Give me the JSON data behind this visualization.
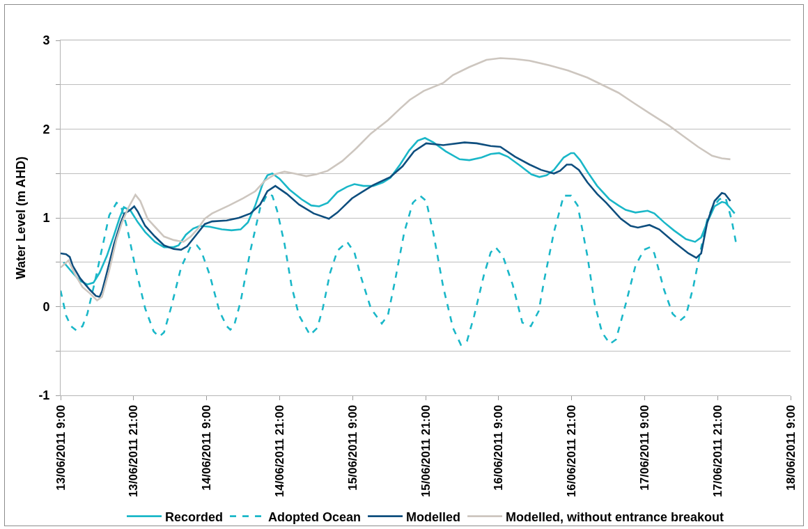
{
  "chart_data": {
    "type": "line",
    "ylabel": "Water Level (m AHD)",
    "xlim": [
      "2011-06-13T09:00",
      "2011-06-18T09:00"
    ],
    "xticks": [
      {
        "value": "2011-06-13T09:00",
        "label": "13/06/2011 9:00"
      },
      {
        "value": "2011-06-13T21:00",
        "label": "13/06/2011 21:00"
      },
      {
        "value": "2011-06-14T09:00",
        "label": "14/06/2011 9:00"
      },
      {
        "value": "2011-06-14T21:00",
        "label": "14/06/2011 21:00"
      },
      {
        "value": "2011-06-15T09:00",
        "label": "15/06/2011 9:00"
      },
      {
        "value": "2011-06-15T21:00",
        "label": "15/06/2011 21:00"
      },
      {
        "value": "2011-06-16T09:00",
        "label": "16/06/2011 9:00"
      },
      {
        "value": "2011-06-16T21:00",
        "label": "16/06/2011 21:00"
      },
      {
        "value": "2011-06-17T09:00",
        "label": "17/06/2011 9:00"
      },
      {
        "value": "2011-06-17T21:00",
        "label": "17/06/2011 21:00"
      },
      {
        "value": "2011-06-18T09:00",
        "label": "18/06/2011 9:00"
      }
    ],
    "ylim": [
      -1,
      3
    ],
    "yticks": [
      -1,
      {
        "value": -0.5,
        "label": null
      },
      0,
      {
        "value": 0.5,
        "label": null
      },
      1,
      {
        "value": 1.5,
        "label": null
      },
      2,
      {
        "value": 2.5,
        "label": null
      },
      3
    ],
    "grid": "y",
    "legend": "bottom",
    "series": [
      {
        "name": "Recorded",
        "color": "#1ab7c8",
        "x": [
          "2011-06-13T09:30",
          "2011-06-13T11:00",
          "2011-06-13T12:12",
          "2011-06-13T13:24",
          "2011-06-13T14:24",
          "2011-06-13T15:24",
          "2011-06-13T16:36",
          "2011-06-13T17:48",
          "2011-06-13T18:42",
          "2011-06-13T19:24",
          "2011-06-13T20:30",
          "2011-06-13T21:42",
          "2011-06-13T22:54",
          "2011-06-14T00:30",
          "2011-06-14T02:00",
          "2011-06-14T03:36",
          "2011-06-14T04:24",
          "2011-06-14T05:36",
          "2011-06-14T06:48",
          "2011-06-14T07:54",
          "2011-06-14T09:30",
          "2011-06-14T11:30",
          "2011-06-14T13:06",
          "2011-06-14T14:36",
          "2011-06-14T15:48",
          "2011-06-14T17:00",
          "2011-06-14T18:12",
          "2011-06-14T19:00",
          "2011-06-14T19:48",
          "2011-06-14T21:00",
          "2011-06-14T22:36",
          "2011-06-15T00:36",
          "2011-06-15T02:12",
          "2011-06-15T03:30",
          "2011-06-15T04:54",
          "2011-06-15T06:30",
          "2011-06-15T08:06",
          "2011-06-15T09:18",
          "2011-06-15T10:48",
          "2011-06-15T12:24",
          "2011-06-15T14:00",
          "2011-06-15T15:12",
          "2011-06-15T16:48",
          "2011-06-15T18:18",
          "2011-06-15T19:42",
          "2011-06-15T20:54",
          "2011-06-15T22:18",
          "2011-06-16T00:18",
          "2011-06-16T02:36",
          "2011-06-16T04:12",
          "2011-06-16T06:12",
          "2011-06-16T07:42",
          "2011-06-16T09:06",
          "2011-06-16T10:30",
          "2011-06-16T12:30",
          "2011-06-16T14:24",
          "2011-06-16T15:42",
          "2011-06-16T16:54",
          "2011-06-16T18:06",
          "2011-06-16T19:42",
          "2011-06-16T20:54",
          "2011-06-16T21:24",
          "2011-06-16T22:24",
          "2011-06-16T23:36",
          "2011-06-17T01:12",
          "2011-06-17T03:12",
          "2011-06-17T04:42",
          "2011-06-17T05:54",
          "2011-06-17T07:30",
          "2011-06-17T09:30",
          "2011-06-17T10:36",
          "2011-06-17T12:12",
          "2011-06-17T13:48",
          "2011-06-17T15:48",
          "2011-06-17T17:18",
          "2011-06-17T18:18",
          "2011-06-17T19:18",
          "2011-06-17T20:30",
          "2011-06-17T21:42",
          "2011-06-17T22:18",
          "2011-06-17T23:06",
          "2011-06-17T23:48"
        ],
        "values": [
          0.5,
          0.38,
          0.29,
          0.25,
          0.27,
          0.38,
          0.57,
          0.81,
          1.0,
          1.12,
          1.08,
          0.95,
          0.84,
          0.73,
          0.67,
          0.67,
          0.69,
          0.81,
          0.88,
          0.91,
          0.9,
          0.87,
          0.86,
          0.87,
          0.95,
          1.14,
          1.38,
          1.48,
          1.5,
          1.44,
          1.32,
          1.21,
          1.14,
          1.13,
          1.17,
          1.29,
          1.35,
          1.38,
          1.36,
          1.36,
          1.4,
          1.45,
          1.6,
          1.76,
          1.87,
          1.9,
          1.85,
          1.75,
          1.66,
          1.65,
          1.68,
          1.72,
          1.73,
          1.69,
          1.59,
          1.49,
          1.46,
          1.48,
          1.54,
          1.68,
          1.73,
          1.73,
          1.65,
          1.52,
          1.36,
          1.21,
          1.14,
          1.09,
          1.06,
          1.08,
          1.05,
          0.95,
          0.86,
          0.76,
          0.73,
          0.78,
          0.95,
          1.13,
          1.18,
          1.17,
          1.11,
          1.05
        ]
      },
      {
        "name": "Adopted Ocean",
        "color": "#1ab7c8",
        "line_style": "dashed",
        "x": [
          "2011-06-13T09:00",
          "2011-06-13T09:54",
          "2011-06-13T10:42",
          "2011-06-13T11:36",
          "2011-06-13T12:36",
          "2011-06-13T13:24",
          "2011-06-13T14:36",
          "2011-06-13T15:48",
          "2011-06-13T17:00",
          "2011-06-13T18:12",
          "2011-06-13T18:54",
          "2011-06-13T19:54",
          "2011-06-13T21:18",
          "2011-06-13T22:54",
          "2011-06-14T00:18",
          "2011-06-14T01:12",
          "2011-06-14T02:00",
          "2011-06-14T03:12",
          "2011-06-14T04:48",
          "2011-06-14T06:24",
          "2011-06-14T07:24",
          "2011-06-14T08:06",
          "2011-06-14T09:30",
          "2011-06-14T11:06",
          "2011-06-14T12:18",
          "2011-06-14T12:54",
          "2011-06-14T13:30",
          "2011-06-14T14:36",
          "2011-06-14T16:12",
          "2011-06-14T17:48",
          "2011-06-14T19:00",
          "2011-06-14T19:48",
          "2011-06-14T20:36",
          "2011-06-14T21:48",
          "2011-06-14T23:00",
          "2011-06-15T00:12",
          "2011-06-15T02:00",
          "2011-06-15T03:12",
          "2011-06-15T04:06",
          "2011-06-15T05:18",
          "2011-06-15T06:30",
          "2011-06-15T08:06",
          "2011-06-15T09:18",
          "2011-06-15T10:24",
          "2011-06-15T12:00",
          "2011-06-15T13:48",
          "2011-06-15T14:48",
          "2011-06-15T16:00",
          "2011-06-15T17:30",
          "2011-06-15T18:54",
          "2011-06-15T20:06",
          "2011-06-15T21:06",
          "2011-06-15T22:18",
          "2011-06-15T23:54",
          "2011-06-16T01:30",
          "2011-06-16T02:48",
          "2011-06-16T03:48",
          "2011-06-16T05:00",
          "2011-06-16T06:36",
          "2011-06-16T07:42",
          "2011-06-16T08:30",
          "2011-06-16T09:42",
          "2011-06-16T11:18",
          "2011-06-16T12:54",
          "2011-06-16T14:18",
          "2011-06-16T15:36",
          "2011-06-16T16:30",
          "2011-06-16T18:06",
          "2011-06-16T19:42",
          "2011-06-16T20:54",
          "2011-06-16T22:00",
          "2011-06-16T23:36",
          "2011-06-17T00:48",
          "2011-06-17T02:00",
          "2011-06-17T03:18",
          "2011-06-17T04:18",
          "2011-06-17T05:54",
          "2011-06-17T07:30",
          "2011-06-17T08:54",
          "2011-06-17T09:54",
          "2011-06-17T10:36",
          "2011-06-17T12:12",
          "2011-06-17T13:36",
          "2011-06-17T14:48",
          "2011-06-17T15:48",
          "2011-06-17T17:00",
          "2011-06-17T18:06",
          "2011-06-17T19:18",
          "2011-06-17T20:06",
          "2011-06-17T21:18",
          "2011-06-17T22:18",
          "2011-06-17T23:18",
          "2011-06-18T00:00"
        ],
        "values": [
          0.18,
          -0.1,
          -0.22,
          -0.27,
          -0.22,
          -0.08,
          0.27,
          0.65,
          1.03,
          1.17,
          1.14,
          0.9,
          0.44,
          -0.02,
          -0.28,
          -0.34,
          -0.29,
          0.0,
          0.44,
          0.68,
          0.69,
          0.63,
          0.36,
          -0.05,
          -0.22,
          -0.26,
          -0.22,
          0.06,
          0.63,
          1.11,
          1.27,
          1.25,
          1.08,
          0.71,
          0.22,
          -0.1,
          -0.32,
          -0.24,
          -0.02,
          0.38,
          0.63,
          0.73,
          0.61,
          0.33,
          -0.02,
          -0.19,
          -0.1,
          0.3,
          0.84,
          1.17,
          1.25,
          1.19,
          0.82,
          0.22,
          -0.24,
          -0.43,
          -0.39,
          -0.1,
          0.36,
          0.61,
          0.67,
          0.57,
          0.25,
          -0.18,
          -0.22,
          -0.05,
          0.3,
          0.84,
          1.25,
          1.25,
          1.14,
          0.57,
          0.03,
          -0.29,
          -0.42,
          -0.37,
          0.03,
          0.46,
          0.64,
          0.67,
          0.6,
          0.19,
          -0.08,
          -0.16,
          -0.1,
          0.22,
          0.6,
          0.98,
          1.11,
          1.21,
          1.23,
          0.98,
          0.73
        ]
      },
      {
        "name": "Modelled",
        "color": "#0e4e7e",
        "x": [
          "2011-06-13T09:00",
          "2011-06-13T09:54",
          "2011-06-13T10:30",
          "2011-06-13T11:00",
          "2011-06-13T12:12",
          "2011-06-13T13:48",
          "2011-06-13T14:48",
          "2011-06-13T15:24",
          "2011-06-13T15:48",
          "2011-06-13T16:36",
          "2011-06-13T17:48",
          "2011-06-13T18:54",
          "2011-06-13T19:30",
          "2011-06-13T20:18",
          "2011-06-13T21:06",
          "2011-06-13T21:42",
          "2011-06-13T22:54",
          "2011-06-14T00:30",
          "2011-06-14T02:00",
          "2011-06-14T03:36",
          "2011-06-14T04:48",
          "2011-06-14T05:48",
          "2011-06-14T07:12",
          "2011-06-14T08:42",
          "2011-06-14T09:54",
          "2011-06-14T12:18",
          "2011-06-14T14:18",
          "2011-06-14T16:12",
          "2011-06-14T17:48",
          "2011-06-14T19:00",
          "2011-06-14T20:18",
          "2011-06-14T22:12",
          "2011-06-15T00:12",
          "2011-06-15T02:36",
          "2011-06-15T05:06",
          "2011-06-15T06:30",
          "2011-06-15T08:54",
          "2011-06-15T10:30",
          "2011-06-15T12:24",
          "2011-06-15T15:12",
          "2011-06-15T17:12",
          "2011-06-15T19:06",
          "2011-06-15T21:06",
          "2011-06-15T23:54",
          "2011-06-16T03:24",
          "2011-06-16T05:24",
          "2011-06-16T07:42",
          "2011-06-16T09:18",
          "2011-06-16T11:42",
          "2011-06-16T14:06",
          "2011-06-16T16:00",
          "2011-06-16T18:06",
          "2011-06-16T19:06",
          "2011-06-16T20:12",
          "2011-06-16T21:00",
          "2011-06-16T22:12",
          "2011-06-16T23:36",
          "2011-06-17T01:12",
          "2011-06-17T02:42",
          "2011-06-17T05:06",
          "2011-06-17T06:42",
          "2011-06-17T07:54",
          "2011-06-17T09:48",
          "2011-06-17T11:24",
          "2011-06-17T13:48",
          "2011-06-17T16:12",
          "2011-06-17T17:30",
          "2011-06-17T18:18",
          "2011-06-17T19:18",
          "2011-06-17T20:30",
          "2011-06-17T21:42",
          "2011-06-17T22:12",
          "2011-06-17T23:06"
        ],
        "values": [
          0.6,
          0.59,
          0.56,
          0.46,
          0.32,
          0.19,
          0.12,
          0.11,
          0.17,
          0.38,
          0.71,
          0.95,
          1.05,
          1.08,
          1.13,
          1.07,
          0.91,
          0.79,
          0.69,
          0.65,
          0.64,
          0.68,
          0.8,
          0.93,
          0.96,
          0.97,
          1.0,
          1.05,
          1.15,
          1.3,
          1.36,
          1.27,
          1.15,
          1.05,
          0.99,
          1.06,
          1.22,
          1.29,
          1.37,
          1.46,
          1.58,
          1.75,
          1.84,
          1.82,
          1.85,
          1.84,
          1.81,
          1.8,
          1.69,
          1.6,
          1.54,
          1.5,
          1.53,
          1.6,
          1.6,
          1.54,
          1.4,
          1.27,
          1.17,
          0.99,
          0.91,
          0.89,
          0.92,
          0.87,
          0.73,
          0.6,
          0.55,
          0.6,
          0.95,
          1.19,
          1.28,
          1.27,
          1.19
        ]
      },
      {
        "name": "Modelled, without entrance breakout",
        "color": "#cdc6bf",
        "x": [
          "2011-06-13T09:00",
          "2011-06-13T10:18",
          "2011-06-13T11:24",
          "2011-06-13T12:36",
          "2011-06-13T13:48",
          "2011-06-13T15:00",
          "2011-06-13T15:48",
          "2011-06-13T17:00",
          "2011-06-13T18:12",
          "2011-06-13T19:06",
          "2011-06-13T20:06",
          "2011-06-13T21:18",
          "2011-06-13T22:06",
          "2011-06-13T23:18",
          "2011-06-14T00:30",
          "2011-06-14T02:00",
          "2011-06-14T03:36",
          "2011-06-14T05:12",
          "2011-06-14T06:24",
          "2011-06-14T07:36",
          "2011-06-14T08:42",
          "2011-06-14T09:54",
          "2011-06-14T12:42",
          "2011-06-14T15:00",
          "2011-06-14T17:00",
          "2011-06-14T18:36",
          "2011-06-14T20:12",
          "2011-06-14T21:48",
          "2011-06-14T23:24",
          "2011-06-15T01:24",
          "2011-06-15T03:00",
          "2011-06-15T04:54",
          "2011-06-15T07:18",
          "2011-06-15T09:42",
          "2011-06-15T12:00",
          "2011-06-15T14:48",
          "2011-06-15T16:48",
          "2011-06-15T18:24",
          "2011-06-15T20:42",
          "2011-06-15T23:54",
          "2011-06-16T01:30",
          "2011-06-16T04:12",
          "2011-06-16T07:00",
          "2011-06-16T09:18",
          "2011-06-16T11:42",
          "2011-06-16T14:06",
          "2011-06-16T17:18",
          "2011-06-16T20:24",
          "2011-06-16T23:36",
          "2011-06-17T02:00",
          "2011-06-17T04:42",
          "2011-06-17T07:06",
          "2011-06-17T09:48",
          "2011-06-17T13:00",
          "2011-06-17T15:24",
          "2011-06-17T17:48",
          "2011-06-17T20:06",
          "2011-06-17T21:42",
          "2011-06-17T23:06"
        ],
        "values": [
          0.44,
          0.52,
          0.36,
          0.22,
          0.15,
          0.07,
          0.11,
          0.41,
          0.76,
          0.95,
          1.11,
          1.26,
          1.19,
          0.99,
          0.9,
          0.79,
          0.75,
          0.73,
          0.79,
          0.88,
          0.99,
          1.05,
          1.14,
          1.22,
          1.3,
          1.42,
          1.49,
          1.52,
          1.5,
          1.47,
          1.49,
          1.53,
          1.64,
          1.79,
          1.95,
          2.1,
          2.23,
          2.33,
          2.43,
          2.52,
          2.61,
          2.7,
          2.78,
          2.8,
          2.79,
          2.77,
          2.72,
          2.66,
          2.58,
          2.5,
          2.41,
          2.3,
          2.18,
          2.04,
          1.92,
          1.8,
          1.7,
          1.67,
          1.66
        ]
      }
    ]
  }
}
